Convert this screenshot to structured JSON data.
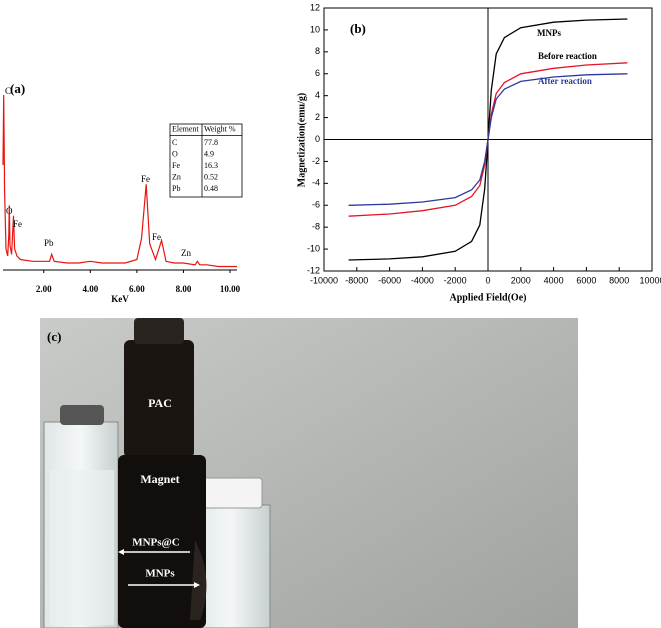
{
  "chart_data": [
    {
      "type": "line",
      "title": "(a)",
      "x_label": "KeV",
      "x": [
        0.25,
        0.28,
        0.32,
        0.38,
        0.45,
        0.5,
        0.52,
        0.55,
        0.62,
        0.7,
        0.75,
        0.85,
        1.0,
        1.5,
        2.0,
        2.25,
        2.34,
        2.45,
        3.0,
        3.5,
        4.0,
        4.5,
        5.0,
        5.5,
        6.0,
        6.2,
        6.4,
        6.55,
        6.8,
        7.06,
        7.25,
        7.6,
        8.0,
        8.5,
        8.6,
        8.7,
        9.0,
        9.5,
        10.0,
        10.3
      ],
      "values": [
        60,
        100,
        45,
        12,
        8,
        20,
        37,
        14,
        9,
        31,
        12,
        8,
        6,
        5,
        5,
        5,
        9,
        5,
        4,
        4,
        5,
        4,
        4,
        4,
        6,
        18,
        49,
        15,
        6,
        17,
        5,
        4,
        4,
        3,
        5,
        3,
        3,
        2,
        2,
        2
      ],
      "color": "#e8140f",
      "xlim": [
        0.25,
        10.3
      ],
      "ylim": [
        0,
        100
      ],
      "xticks": [
        {
          "value": 2,
          "label": "2.00"
        },
        {
          "value": 4,
          "label": "4.00"
        },
        {
          "value": 6,
          "label": "6.00"
        },
        {
          "value": 8,
          "label": "8.00"
        },
        {
          "value": 10,
          "label": "10.00"
        }
      ],
      "annotations": [
        "C",
        "O",
        "Fe",
        "Pb",
        "Fe",
        "Fe",
        "Zn"
      ],
      "table": {
        "header": [
          "Element",
          "Weight %"
        ],
        "rows": [
          [
            "C",
            77.8
          ],
          [
            "O",
            4.9
          ],
          [
            "Fe",
            16.3
          ],
          [
            "Zn",
            0.52
          ],
          [
            "Pb",
            0.48
          ]
        ]
      }
    },
    {
      "type": "line",
      "title": "(b)",
      "x_label": "Applied Field(Oe)",
      "y_label": "Magnetization(emu/g)",
      "x": [
        -8500,
        -6000,
        -4000,
        -2000,
        -1000,
        -500,
        -200,
        0,
        200,
        500,
        1000,
        2000,
        4000,
        6000,
        8500
      ],
      "series": [
        {
          "name": "MNPs",
          "color": "#000000",
          "values": [
            -11,
            -10.9,
            -10.7,
            -10.2,
            -9.3,
            -7.8,
            -4.5,
            0,
            4.5,
            7.8,
            9.3,
            10.2,
            10.7,
            10.9,
            11
          ]
        },
        {
          "name": "Before reaction",
          "color": "#e8142a",
          "values": [
            -7,
            -6.8,
            -6.5,
            -6,
            -5.2,
            -4.2,
            -2.3,
            0,
            2.3,
            4.2,
            5.2,
            6,
            6.5,
            6.8,
            7
          ]
        },
        {
          "name": "After reaction",
          "color": "#2b3a9a",
          "values": [
            -6,
            -5.9,
            -5.7,
            -5.3,
            -4.6,
            -3.7,
            -2,
            0,
            2,
            3.7,
            4.6,
            5.3,
            5.7,
            5.9,
            6
          ]
        }
      ],
      "xlim": [
        -10000,
        10000
      ],
      "ylim": [
        -12,
        12
      ],
      "xticks": [
        -10000,
        -8000,
        -6000,
        -4000,
        -2000,
        0,
        2000,
        4000,
        6000,
        8000,
        10000
      ],
      "yticks": [
        -12,
        -10,
        -8,
        -6,
        -4,
        -2,
        0,
        2,
        4,
        6,
        8,
        10,
        12
      ]
    }
  ],
  "photo": {
    "title": "(c)",
    "labels": [
      "PAC",
      "Magnet",
      "MNPs@C",
      "MNPs"
    ]
  }
}
